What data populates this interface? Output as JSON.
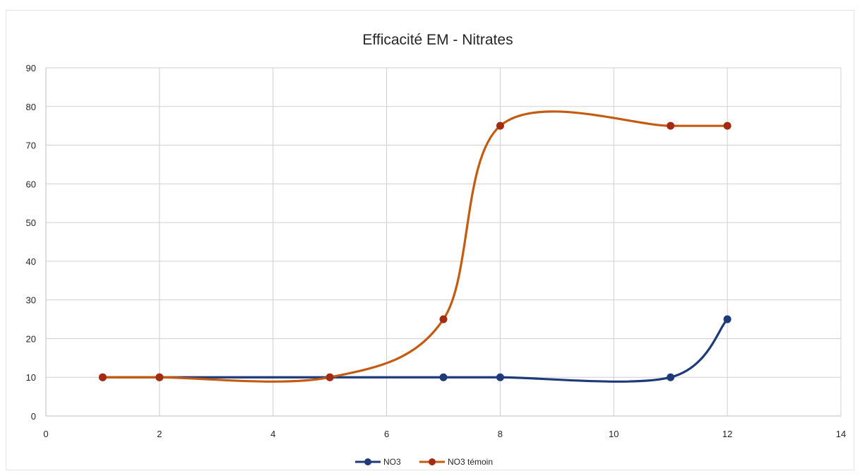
{
  "chart_data": {
    "type": "line",
    "title": "Efficacité EM - Nitrates",
    "xlabel": "",
    "ylabel": "",
    "xlim": [
      0,
      14
    ],
    "ylim": [
      0,
      90
    ],
    "x_ticks": [
      0,
      2,
      4,
      6,
      8,
      10,
      12,
      14
    ],
    "y_ticks": [
      0,
      10,
      20,
      30,
      40,
      50,
      60,
      70,
      80,
      90
    ],
    "grid": true,
    "smooth": true,
    "legend_position": "bottom",
    "series": [
      {
        "name": "NO3",
        "color": "#1f3a7a",
        "x": [
          1,
          2,
          5,
          7,
          8,
          11,
          12
        ],
        "y": [
          10,
          10,
          10,
          10,
          10,
          10,
          25
        ]
      },
      {
        "name": "NO3 témoin",
        "color": "#c55a11",
        "marker_color": "#a52a12",
        "x": [
          1,
          2,
          5,
          7,
          8,
          11,
          12
        ],
        "y": [
          10,
          10,
          10,
          25,
          75,
          75,
          75
        ]
      }
    ]
  }
}
